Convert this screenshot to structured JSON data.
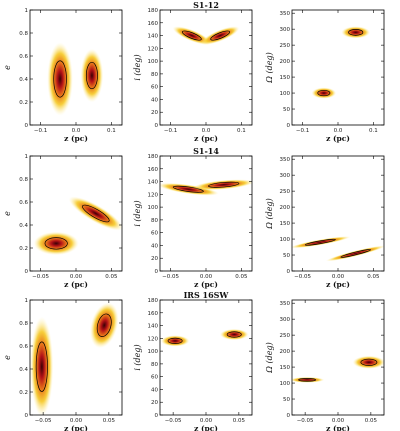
{
  "chart_data": [
    {
      "type": "heatmap",
      "title": "",
      "xlabel": "z (pc)",
      "ylabel": "e",
      "xlim": [
        -0.13,
        0.13
      ],
      "ylim": [
        0,
        1
      ],
      "xticks": [
        -0.1,
        0,
        0.1
      ],
      "xticklabels": [
        "−0.1",
        "0.0",
        "0.1"
      ],
      "yticks": [
        0,
        0.2,
        0.4,
        0.6,
        0.8,
        1
      ],
      "yticklabels": [
        "0",
        "0.2",
        "0.4",
        "0.6",
        "0.8",
        "1"
      ],
      "blobs": [
        {
          "cx": -0.045,
          "cy": 0.4,
          "rx": 0.025,
          "ry": 0.22,
          "angle": 0
        },
        {
          "cx": 0.045,
          "cy": 0.43,
          "rx": 0.022,
          "ry": 0.16,
          "angle": 0
        }
      ]
    },
    {
      "type": "heatmap",
      "title": "S1-12",
      "xlabel": "z (pc)",
      "ylabel": "i (deg)",
      "xlim": [
        -0.13,
        0.13
      ],
      "ylim": [
        0,
        180
      ],
      "xticks": [
        -0.1,
        0,
        0.1
      ],
      "xticklabels": [
        "−0.1",
        "0.0",
        "0.1"
      ],
      "yticks": [
        0,
        20,
        40,
        60,
        80,
        100,
        120,
        140,
        160,
        180
      ],
      "yticklabels": [
        "0",
        "20",
        "40",
        "60",
        "80",
        "100",
        "120",
        "140",
        "160",
        "180"
      ],
      "blobs": [
        {
          "cx": -0.04,
          "cy": 140,
          "rx": 0.04,
          "ry": 6,
          "angle": -22
        },
        {
          "cx": 0.04,
          "cy": 140,
          "rx": 0.04,
          "ry": 6,
          "angle": 22
        }
      ]
    },
    {
      "type": "heatmap",
      "title": "",
      "xlabel": "z (pc)",
      "ylabel": "Ω (deg)",
      "xlim": [
        -0.13,
        0.13
      ],
      "ylim": [
        0,
        360
      ],
      "xticks": [
        -0.1,
        0,
        0.1
      ],
      "xticklabels": [
        "−0.1",
        "0.0",
        "0.1"
      ],
      "yticks": [
        0,
        50,
        100,
        150,
        200,
        250,
        300,
        350
      ],
      "yticklabels": [
        "0",
        "50",
        "100",
        "150",
        "200",
        "250",
        "300",
        "350"
      ],
      "blobs": [
        {
          "cx": -0.04,
          "cy": 100,
          "rx": 0.024,
          "ry": 12,
          "angle": 0
        },
        {
          "cx": 0.05,
          "cy": 290,
          "rx": 0.028,
          "ry": 13,
          "angle": 0
        }
      ]
    },
    {
      "type": "heatmap",
      "title": "",
      "xlabel": "z (pc)",
      "ylabel": "e",
      "xlim": [
        -0.065,
        0.065
      ],
      "ylim": [
        0,
        1
      ],
      "xticks": [
        -0.05,
        0,
        0.05
      ],
      "xticklabels": [
        "−0.05",
        "0.00",
        "0.05"
      ],
      "yticks": [
        0,
        0.2,
        0.4,
        0.6,
        0.8,
        1
      ],
      "yticklabels": [
        "0",
        "0.2",
        "0.4",
        "0.6",
        "0.8",
        "1"
      ],
      "blobs": [
        {
          "cx": -0.028,
          "cy": 0.24,
          "rx": 0.022,
          "ry": 0.07,
          "angle": 0
        },
        {
          "cx": 0.028,
          "cy": 0.5,
          "rx": 0.03,
          "ry": 0.05,
          "angle": -30
        }
      ]
    },
    {
      "type": "heatmap",
      "title": "S1-14",
      "xlabel": "z (pc)",
      "ylabel": "i (deg)",
      "xlim": [
        -0.065,
        0.065
      ],
      "ylim": [
        0,
        180
      ],
      "xticks": [
        -0.05,
        0,
        0.05
      ],
      "xticklabels": [
        "−0.05",
        "0.00",
        "0.05"
      ],
      "yticks": [
        0,
        20,
        40,
        60,
        80,
        100,
        120,
        140,
        160,
        180
      ],
      "yticklabels": [
        "0",
        "20",
        "40",
        "60",
        "80",
        "100",
        "120",
        "140",
        "160",
        "180"
      ],
      "blobs": [
        {
          "cx": -0.025,
          "cy": 128,
          "rx": 0.03,
          "ry": 5,
          "angle": -8
        },
        {
          "cx": 0.025,
          "cy": 135,
          "rx": 0.03,
          "ry": 5,
          "angle": 5
        }
      ]
    },
    {
      "type": "heatmap",
      "title": "",
      "xlabel": "z (pc)",
      "ylabel": "Ω (deg)",
      "xlim": [
        -0.065,
        0.065
      ],
      "ylim": [
        0,
        360
      ],
      "xticks": [
        -0.05,
        0,
        0.05
      ],
      "xticklabels": [
        "−0.05",
        "0.00",
        "0.05"
      ],
      "yticks": [
        0,
        50,
        100,
        150,
        200,
        250,
        300,
        350
      ],
      "yticklabels": [
        "0",
        "50",
        "100",
        "150",
        "200",
        "250",
        "300",
        "350"
      ],
      "blobs": [
        {
          "cx": -0.025,
          "cy": 90,
          "rx": 0.03,
          "ry": 6,
          "angle": 10
        },
        {
          "cx": 0.025,
          "cy": 55,
          "rx": 0.03,
          "ry": 6,
          "angle": 14
        }
      ]
    },
    {
      "type": "heatmap",
      "title": "",
      "xlabel": "z (pc)",
      "ylabel": "e",
      "xlim": [
        -0.07,
        0.07
      ],
      "ylim": [
        0,
        1
      ],
      "xticks": [
        -0.05,
        0,
        0.05
      ],
      "xticklabels": [
        "−0.05",
        "0.00",
        "0.05"
      ],
      "yticks": [
        0,
        0.2,
        0.4,
        0.6,
        0.8,
        1
      ],
      "yticklabels": [
        "0",
        "0.2",
        "0.4",
        "0.6",
        "0.8",
        "1"
      ],
      "blobs": [
        {
          "cx": -0.052,
          "cy": 0.42,
          "rx": 0.012,
          "ry": 0.3,
          "angle": 0
        },
        {
          "cx": 0.043,
          "cy": 0.78,
          "rx": 0.014,
          "ry": 0.14,
          "angle": -15
        }
      ]
    },
    {
      "type": "heatmap",
      "title": "IRS 16SW",
      "xlabel": "z (pc)",
      "ylabel": "i (deg)",
      "xlim": [
        -0.07,
        0.07
      ],
      "ylim": [
        0,
        180
      ],
      "xticks": [
        -0.05,
        0,
        0.05
      ],
      "xticklabels": [
        "−0.05",
        "0.00",
        "0.05"
      ],
      "yticks": [
        0,
        20,
        40,
        60,
        80,
        100,
        120,
        140,
        160,
        180
      ],
      "yticklabels": [
        "0",
        "20",
        "40",
        "60",
        "80",
        "100",
        "120",
        "140",
        "160",
        "180"
      ],
      "blobs": [
        {
          "cx": -0.047,
          "cy": 116,
          "rx": 0.015,
          "ry": 6,
          "angle": 0
        },
        {
          "cx": 0.043,
          "cy": 126,
          "rx": 0.015,
          "ry": 6,
          "angle": 0
        }
      ]
    },
    {
      "type": "heatmap",
      "title": "",
      "xlabel": "z (pc)",
      "ylabel": "Ω (deg)",
      "xlim": [
        -0.07,
        0.07
      ],
      "ylim": [
        0,
        360
      ],
      "xticks": [
        -0.05,
        0,
        0.05
      ],
      "xticklabels": [
        "−0.05",
        "0.00",
        "0.05"
      ],
      "yticks": [
        0,
        50,
        100,
        150,
        200,
        250,
        300,
        350
      ],
      "yticklabels": [
        "0",
        "50",
        "100",
        "150",
        "200",
        "250",
        "300",
        "350"
      ],
      "blobs": [
        {
          "cx": -0.047,
          "cy": 110,
          "rx": 0.018,
          "ry": 6,
          "angle": 0
        },
        {
          "cx": 0.047,
          "cy": 165,
          "rx": 0.017,
          "ry": 14,
          "angle": 0
        }
      ]
    }
  ],
  "colors": {
    "outer": "#fff3b0",
    "mid": "#f5c518",
    "warm": "#e8741a",
    "core": "#b31217",
    "center": "#3a0004",
    "contour": "#000000"
  }
}
